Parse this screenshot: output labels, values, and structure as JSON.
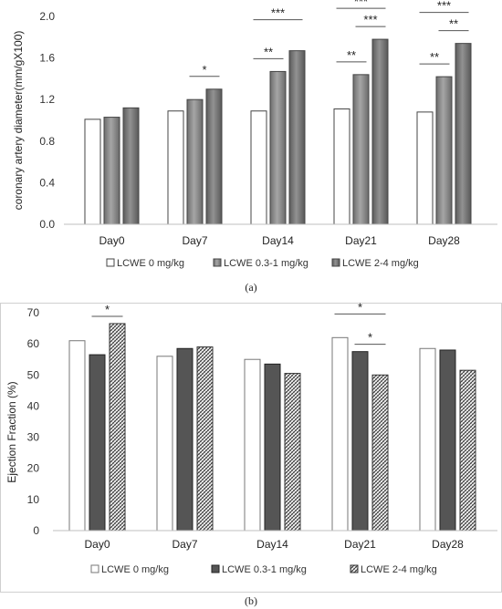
{
  "chart_data": [
    {
      "type": "bar",
      "panel_label": "(a)",
      "categories": [
        "Day0",
        "Day7",
        "Day14",
        "Day21",
        "Day28"
      ],
      "ylabel": "coronary artery diameter(mm/gX100)",
      "ylim": [
        0,
        2.0
      ],
      "yticks": [
        "0.0",
        "0.4",
        "0.8",
        "1.2",
        "1.6",
        "2.0"
      ],
      "ytick_values": [
        0,
        0.4,
        0.8,
        1.2,
        1.6,
        2.0
      ],
      "grid": false,
      "legend_position": "bottom",
      "series": [
        {
          "name": "LCWE 0 mg/kg",
          "values": [
            1.01,
            1.09,
            1.09,
            1.11,
            1.08
          ],
          "color": "#ffffff"
        },
        {
          "name": "LCWE 0.3-1 mg/kg",
          "values": [
            1.03,
            1.2,
            1.47,
            1.44,
            1.42
          ],
          "color": "#8c8c8c"
        },
        {
          "name": "LCWE 2-4 mg/kg",
          "values": [
            1.12,
            1.3,
            1.67,
            1.78,
            1.74
          ],
          "color": "#7a7a7a"
        }
      ],
      "significance": [
        {
          "category": 1,
          "from": 1,
          "to": 2,
          "label": "*"
        },
        {
          "category": 2,
          "from": 0,
          "to": 1,
          "label": "**"
        },
        {
          "category": 2,
          "from": 0,
          "to": 2,
          "label": "***"
        },
        {
          "category": 3,
          "from": 0,
          "to": 1,
          "label": "**"
        },
        {
          "category": 3,
          "from": 1,
          "to": 2,
          "label": "***"
        },
        {
          "category": 3,
          "from": 0,
          "to": 2,
          "label": "***"
        },
        {
          "category": 4,
          "from": 0,
          "to": 1,
          "label": "**"
        },
        {
          "category": 4,
          "from": 1,
          "to": 2,
          "label": "**"
        },
        {
          "category": 4,
          "from": 0,
          "to": 2,
          "label": "***"
        }
      ]
    },
    {
      "type": "bar",
      "panel_label": "(b)",
      "categories": [
        "Day0",
        "Day7",
        "Day14",
        "Day21",
        "Day28"
      ],
      "ylabel": "Ejection Fraction (%)",
      "ylim": [
        0,
        70
      ],
      "yticks": [
        "0",
        "10",
        "20",
        "30",
        "40",
        "50",
        "60",
        "70"
      ],
      "ytick_values": [
        0,
        10,
        20,
        30,
        40,
        50,
        60,
        70
      ],
      "grid": false,
      "legend_position": "bottom",
      "series": [
        {
          "name": "LCWE 0 mg/kg",
          "values": [
            61.0,
            56.0,
            55.0,
            62.0,
            58.5
          ],
          "color": "#ffffff"
        },
        {
          "name": "LCWE 0.3-1 mg/kg",
          "values": [
            56.5,
            58.5,
            53.5,
            57.5,
            58.0
          ],
          "color": "#555555"
        },
        {
          "name": "LCWE 2-4 mg/kg",
          "values": [
            66.5,
            59.0,
            50.5,
            50.0,
            51.5
          ],
          "color": "#999999"
        }
      ],
      "significance": [
        {
          "category": 0,
          "from": 1,
          "to": 2,
          "label": "*"
        },
        {
          "category": 3,
          "from": 0,
          "to": 2,
          "label": "*"
        },
        {
          "category": 3,
          "from": 1,
          "to": 2,
          "label": "*"
        }
      ]
    }
  ]
}
